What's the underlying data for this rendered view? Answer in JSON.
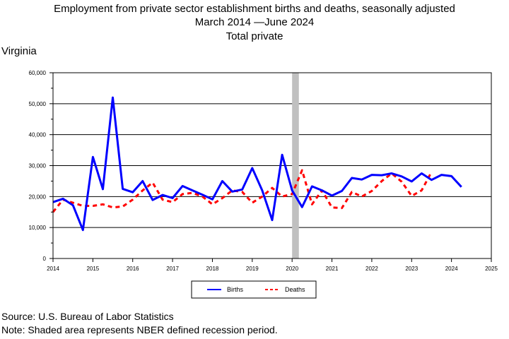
{
  "chart_data": {
    "type": "line",
    "title": "Employment from private sector establishment births and deaths, seasonally adjusted",
    "subtitle_start": "March 2014",
    "subtitle_end": "June 2024",
    "subtitle_line3": "Total private",
    "region_label": "Virginia",
    "x_ticks": [
      "2014",
      "2015",
      "2016",
      "2017",
      "2018",
      "2019",
      "2020",
      "2021",
      "2022",
      "2023",
      "2024",
      "2025"
    ],
    "y_ticks": [
      "0",
      "10,000",
      "20,000",
      "30,000",
      "40,000",
      "50,000",
      "60,000"
    ],
    "xlim": [
      2014,
      2025
    ],
    "ylim": [
      0,
      60000
    ],
    "grid": "horizontal",
    "legend_position": "bottom",
    "recession": {
      "start": 2020.0,
      "end": 2020.17,
      "color": "#c0c0c0"
    },
    "series": [
      {
        "name": "Births",
        "color": "#0000ff",
        "style": "solid",
        "x": [
          2014.0,
          2014.25,
          2014.5,
          2014.75,
          2015.0,
          2015.25,
          2015.5,
          2015.75,
          2016.0,
          2016.25,
          2016.5,
          2016.75,
          2017.0,
          2017.25,
          2017.5,
          2017.75,
          2018.0,
          2018.25,
          2018.5,
          2018.75,
          2019.0,
          2019.25,
          2019.5,
          2019.75,
          2020.0,
          2020.25,
          2020.5,
          2020.75,
          2021.0,
          2021.25,
          2021.5,
          2021.75,
          2022.0,
          2022.25,
          2022.5,
          2022.75,
          2023.0,
          2023.25,
          2023.5,
          2023.75,
          2024.0,
          2024.25
        ],
        "y": [
          18200,
          19300,
          17200,
          9200,
          32800,
          22400,
          52000,
          22500,
          21400,
          25000,
          18900,
          20500,
          19500,
          23400,
          22000,
          20600,
          19100,
          25000,
          21600,
          22300,
          29200,
          22000,
          12400,
          33500,
          22000,
          16600,
          23300,
          22000,
          20300,
          21800,
          26000,
          25500,
          27000,
          26900,
          27500,
          26500,
          24900,
          27500,
          25400,
          27000,
          26600,
          23100
        ]
      },
      {
        "name": "Deaths",
        "color": "#ff0000",
        "style": "dashed",
        "x": [
          2014.0,
          2014.25,
          2014.5,
          2014.75,
          2015.0,
          2015.25,
          2015.5,
          2015.75,
          2016.0,
          2016.25,
          2016.5,
          2016.75,
          2017.0,
          2017.25,
          2017.5,
          2017.75,
          2018.0,
          2018.25,
          2018.5,
          2018.75,
          2019.0,
          2019.25,
          2019.5,
          2019.75,
          2020.0,
          2020.25,
          2020.5,
          2020.75,
          2021.0,
          2021.25,
          2021.5,
          2021.75,
          2022.0,
          2022.25,
          2022.5,
          2022.75,
          2023.0,
          2023.25,
          2023.5
        ],
        "y": [
          15000,
          19000,
          18000,
          17000,
          17000,
          17500,
          16500,
          16800,
          19000,
          22000,
          24500,
          19000,
          18200,
          20800,
          21200,
          20000,
          17500,
          19500,
          22000,
          21500,
          18000,
          20000,
          22800,
          20000,
          20800,
          28500,
          17500,
          22000,
          16500,
          16300,
          21500,
          20000,
          21800,
          25000,
          27500,
          24800,
          20200,
          22000,
          28000
        ]
      }
    ]
  },
  "footer": {
    "source": "Source: U.S. Bureau of Labor Statistics",
    "note": "Note: Shaded area represents NBER defined recession period."
  }
}
